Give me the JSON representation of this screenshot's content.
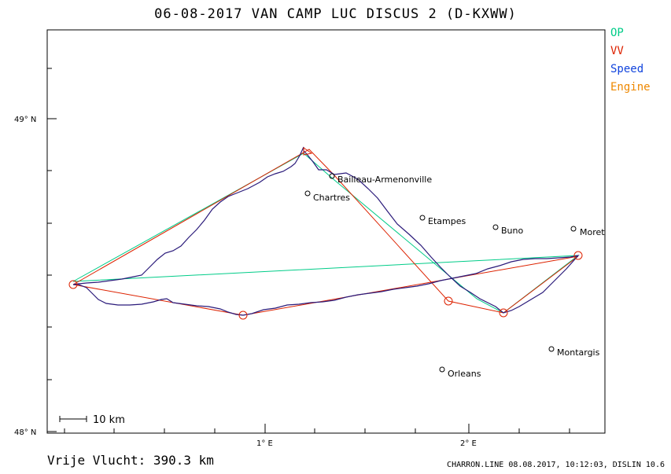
{
  "title": "06-08-2017   VAN CAMP LUC   DISCUS 2 (D-KXWW)",
  "legend": [
    {
      "label": "OP",
      "color": "#00cc88"
    },
    {
      "label": "VV",
      "color": "#dd2200"
    },
    {
      "label": "Speed",
      "color": "#1144dd"
    },
    {
      "label": "Engine",
      "color": "#ee8800"
    }
  ],
  "axes": {
    "lat_ticks": [
      {
        "label": "49° N"
      },
      {
        "label": "48° N"
      }
    ],
    "lon_ticks": [
      {
        "label": "1° E"
      },
      {
        "label": "2° E"
      }
    ]
  },
  "scale_label": "10 km",
  "places": [
    {
      "name": "Bailleau-Armenonville"
    },
    {
      "name": "Chartres"
    },
    {
      "name": "Etampes"
    },
    {
      "name": "Buno"
    },
    {
      "name": "Moret"
    },
    {
      "name": "Montargis"
    },
    {
      "name": "Orleans"
    }
  ],
  "distance_label": "Vrije Vlucht:  390.3 km",
  "footer": "CHARRON.LINE 08.08.2017, 10:12:03, DISLIN 10.6"
}
